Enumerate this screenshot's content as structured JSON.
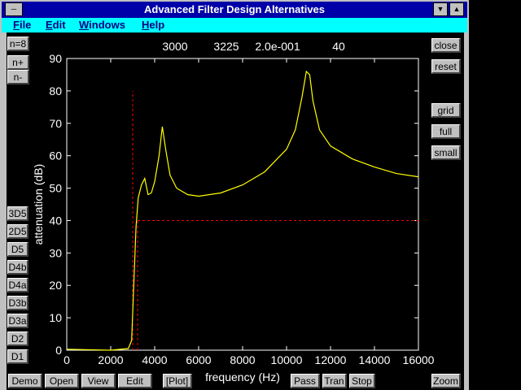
{
  "window": {
    "title": "Advanced Filter Design Alternatives",
    "menu": [
      "File",
      "Edit",
      "Windows",
      "Help"
    ]
  },
  "buttons": {
    "order": [
      "n=8",
      "n+",
      "n-"
    ],
    "designs": [
      "3D5",
      "2D5",
      "D5",
      "D4b",
      "D4a",
      "D3b",
      "D3a",
      "D2",
      "D1"
    ],
    "view": [
      "close",
      "reset",
      "grid",
      "full",
      "small"
    ],
    "bottom": [
      "Demo",
      "Open",
      "View",
      "Edit",
      "[Plot]",
      "Pass",
      "Tran",
      "Stop",
      "Zoom"
    ]
  },
  "chart_data": {
    "type": "line",
    "y_label": "attenuation (dB)",
    "x_label": "frequency (Hz)",
    "xlim": [
      0,
      16000
    ],
    "ylim": [
      0,
      90
    ],
    "xticks": [
      0,
      2000,
      4000,
      6000,
      8000,
      10000,
      12000,
      14000,
      16000
    ],
    "yticks": [
      0,
      10,
      20,
      30,
      40,
      50,
      60,
      70,
      80,
      90
    ],
    "grid": false,
    "x": [
      0,
      2000,
      2800,
      2950,
      3050,
      3150,
      3250,
      3400,
      3550,
      3700,
      3850,
      4000,
      4200,
      4350,
      4500,
      4700,
      5000,
      5500,
      6000,
      7000,
      8000,
      9000,
      10000,
      10400,
      10700,
      10900,
      11050,
      11200,
      11500,
      12000,
      13000,
      14000,
      15000,
      16000
    ],
    "series": [
      {
        "color": "#ffff00",
        "values": [
          0.3,
          0,
          0.5,
          3,
          20,
          38,
          47,
          51,
          53,
          48,
          48.5,
          52,
          60,
          69,
          62,
          54,
          50,
          48,
          47.5,
          48.5,
          51,
          55,
          62,
          68,
          78,
          86,
          85,
          77,
          68,
          63,
          59,
          56.5,
          54.5,
          53.5
        ]
      }
    ],
    "spec": {
      "color": "#ff0000",
      "passband_edge": 3000,
      "stopband_edge": 3225,
      "ripple": {
        "value": 0.2,
        "label": "2.0e-001"
      },
      "attenuation": 40,
      "passband_line_top": 80
    }
  }
}
